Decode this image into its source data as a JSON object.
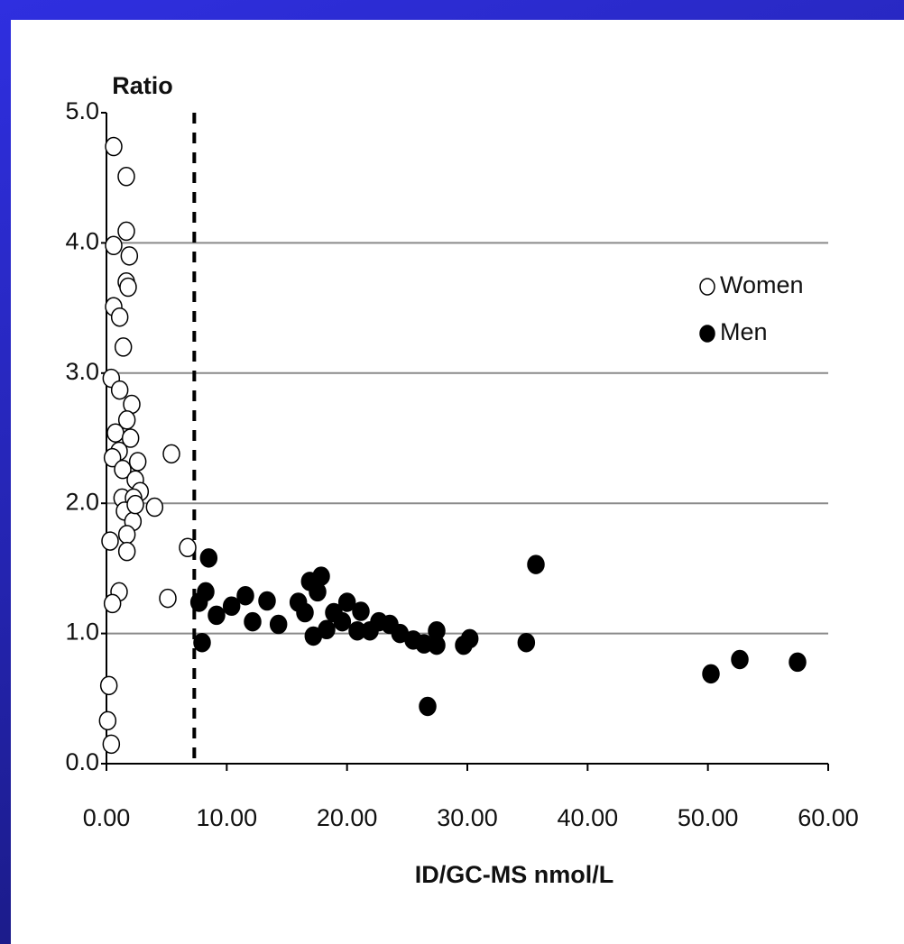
{
  "chart_data": {
    "type": "scatter",
    "x_label": "ID/GC-MS nmol/L",
    "y_label": "Ratio",
    "xlim": [
      0,
      60
    ],
    "ylim": [
      0,
      5
    ],
    "xticks": [
      {
        "value": 0,
        "label": "0.00"
      },
      {
        "value": 10,
        "label": "10.00"
      },
      {
        "value": 20,
        "label": "20.00"
      },
      {
        "value": 30,
        "label": "30.00"
      },
      {
        "value": 40,
        "label": "40.00"
      },
      {
        "value": 50,
        "label": "50.00"
      },
      {
        "value": 60,
        "label": "60.00"
      }
    ],
    "yticks": [
      {
        "value": 0,
        "label": "0.0"
      },
      {
        "value": 1,
        "label": "1.0"
      },
      {
        "value": 2,
        "label": "2.0"
      },
      {
        "value": 3,
        "label": "3.0"
      },
      {
        "value": 4,
        "label": "4.0"
      },
      {
        "value": 5,
        "label": "5.0"
      }
    ],
    "grid": true,
    "grid_color": "#8a8a8a",
    "legend": "upper right",
    "vline_x": 7.3,
    "series": [
      {
        "name": "Women",
        "color": "#000000",
        "filled": false,
        "x": [
          0.6,
          1.65,
          1.65,
          0.6,
          1.9,
          1.65,
          1.8,
          0.6,
          1.1,
          1.4,
          0.4,
          1.1,
          2.1,
          1.7,
          0.75,
          2.0,
          1.05,
          2.6,
          0.5,
          1.35,
          2.4,
          2.8,
          5.4,
          4.0,
          1.3,
          2.25,
          1.5,
          2.2,
          1.7,
          1.7,
          0.3,
          6.75,
          1.05,
          0.5,
          5.1,
          0.2,
          0.1,
          0.4,
          2.4
        ],
        "values": [
          4.74,
          4.51,
          4.09,
          3.98,
          3.9,
          3.7,
          3.66,
          3.51,
          3.43,
          3.2,
          2.96,
          2.87,
          2.76,
          2.64,
          2.54,
          2.5,
          2.4,
          2.32,
          2.35,
          2.26,
          2.18,
          2.09,
          2.38,
          1.97,
          2.04,
          2.04,
          1.94,
          1.86,
          1.76,
          1.63,
          1.71,
          1.66,
          1.32,
          1.23,
          1.27,
          0.6,
          0.33,
          0.15,
          1.99
        ]
      },
      {
        "name": "Men",
        "color": "#000000",
        "filled": true,
        "x": [
          8.5,
          7.7,
          8.25,
          7.95,
          9.15,
          10.4,
          11.55,
          12.15,
          13.35,
          14.3,
          15.95,
          16.5,
          16.9,
          17.85,
          17.55,
          17.2,
          18.3,
          18.9,
          19.6,
          20.0,
          20.85,
          21.15,
          21.9,
          22.65,
          23.55,
          24.4,
          25.5,
          26.4,
          27.45,
          27.45,
          26.7,
          29.7,
          30.2,
          34.9,
          35.7,
          50.25,
          52.65,
          57.45
        ],
        "values": [
          1.58,
          1.24,
          1.32,
          0.93,
          1.14,
          1.21,
          1.29,
          1.09,
          1.25,
          1.07,
          1.24,
          1.16,
          1.4,
          1.44,
          1.32,
          0.98,
          1.03,
          1.16,
          1.09,
          1.24,
          1.02,
          1.17,
          1.02,
          1.09,
          1.07,
          1.0,
          0.95,
          0.92,
          1.02,
          0.91,
          0.44,
          0.91,
          0.96,
          0.93,
          1.53,
          0.69,
          0.8,
          0.78
        ]
      }
    ]
  }
}
